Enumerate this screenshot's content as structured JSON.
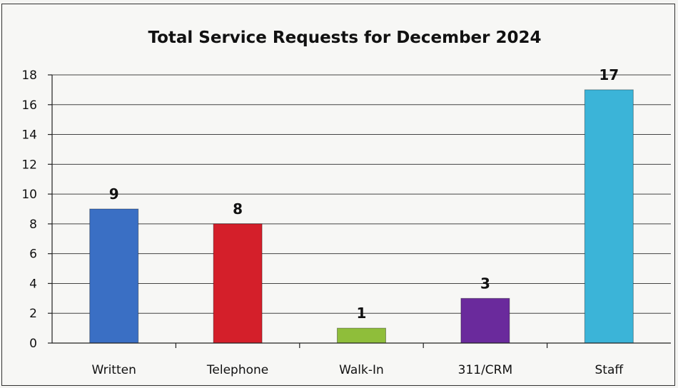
{
  "chart_data": {
    "type": "bar",
    "title": "Total Service Requests for December 2024",
    "xlabel": "",
    "ylabel": "",
    "categories": [
      "Written",
      "Telephone",
      "Walk-In",
      "311/CRM",
      "Staff"
    ],
    "values": [
      9,
      8,
      1,
      3,
      17
    ],
    "data_labels": [
      "9",
      "8",
      "1",
      "3",
      "17"
    ],
    "colors": [
      "#3a6fc4",
      "#d41f2a",
      "#8fbe3a",
      "#6a2a9c",
      "#3bb4d8"
    ],
    "ylim": [
      0,
      18
    ],
    "yticks": [
      0,
      2,
      4,
      6,
      8,
      10,
      12,
      14,
      16,
      18
    ],
    "grid": true,
    "legend": "none"
  }
}
